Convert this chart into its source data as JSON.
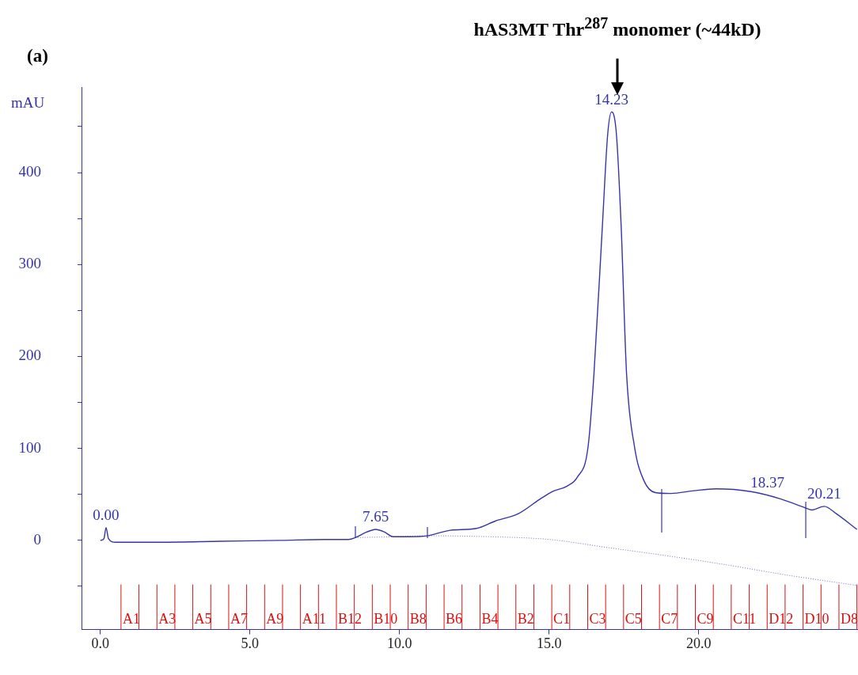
{
  "chart_data": {
    "type": "line",
    "title": "hAS3MT Thr$^{287}$ monomer (~44kD)",
    "ylabel": "mAU",
    "annotations": [
      "(a)",
      {
        "text": "0.00",
        "x": 0.19,
        "y": 14
      },
      {
        "text": "7.65",
        "x": 9.2,
        "y": 12
      },
      {
        "text": "14.23",
        "x": 17.09,
        "y": 466
      },
      {
        "text": "18.37",
        "x": 22.3,
        "y": 49
      },
      {
        "text": "20.21",
        "x": 24.2,
        "y": 37
      }
    ],
    "xlim": [
      -0.63,
      25.3
    ],
    "xticks": [
      {
        "value": 0,
        "label": "0.0"
      },
      {
        "value": 5,
        "label": "5.0"
      },
      {
        "value": 10,
        "label": "10.0"
      },
      {
        "value": 15,
        "label": "15.0"
      },
      {
        "value": 20,
        "label": "20.0"
      }
    ],
    "ylim": [
      -97,
      493
    ],
    "yticks": [
      {
        "value": -50,
        "label": null
      },
      0,
      {
        "value": 50,
        "label": null
      },
      100,
      {
        "value": 150,
        "label": null
      },
      200,
      {
        "value": 250,
        "label": null
      },
      300,
      {
        "value": 350,
        "label": null
      },
      400,
      {
        "value": 450,
        "label": null
      }
    ],
    "grid": false,
    "legend": false,
    "marker": "none",
    "series": [
      {
        "color": "#3535a8",
        "line_style": "solid",
        "x": [
          0,
          0.12,
          0.19,
          0.27,
          0.5,
          2,
          4,
          6,
          7.5,
          8.3,
          8.52,
          8.9,
          9.2,
          9.5,
          9.79,
          10.3,
          10.93,
          11.7,
          12.57,
          13.2,
          13.97,
          14.7,
          15.1,
          15.6,
          15.95,
          16.3,
          16.5,
          16.78,
          16.96,
          17.09,
          17.25,
          17.41,
          17.59,
          17.86,
          18.17,
          18.55,
          19.07,
          19.84,
          20.58,
          21.75,
          22.75,
          23.52,
          23.78,
          24.2,
          24.6,
          25.29
        ],
        "values": [
          0,
          2,
          14,
          2,
          -2,
          -2,
          -1,
          0,
          1,
          1,
          3,
          9,
          12,
          9,
          4,
          4,
          5,
          11,
          13,
          21,
          29,
          45,
          53,
          59,
          69,
          101,
          181,
          341,
          442,
          466,
          442,
          341,
          181,
          101,
          65,
          52,
          51,
          54,
          56,
          53,
          45,
          36,
          33,
          37,
          29,
          12
        ]
      },
      {
        "color": "#7070c8",
        "line_style": "dotted",
        "x": [
          8.52,
          9.79,
          10.93,
          13,
          15,
          17,
          19,
          21,
          23,
          25.3
        ],
        "values": [
          3,
          4,
          5,
          4,
          1,
          -8,
          -17,
          -27,
          -38,
          -49
        ]
      }
    ],
    "ref_lines": [
      {
        "axis": "x",
        "value": 0.69,
        "label": "A1",
        "color": "#e01010"
      },
      {
        "axis": "x",
        "value": 1.29,
        "label": null,
        "color": "#e01010"
      },
      {
        "axis": "x",
        "value": 1.89,
        "label": "A3",
        "color": "#e01010"
      },
      {
        "axis": "x",
        "value": 2.49,
        "label": null,
        "color": "#e01010"
      },
      {
        "axis": "x",
        "value": 3.09,
        "label": "A5",
        "color": "#e01010"
      },
      {
        "axis": "x",
        "value": 3.69,
        "label": null,
        "color": "#e01010"
      },
      {
        "axis": "x",
        "value": 4.29,
        "label": "A7",
        "color": "#e01010"
      },
      {
        "axis": "x",
        "value": 4.89,
        "label": null,
        "color": "#e01010"
      },
      {
        "axis": "x",
        "value": 5.49,
        "label": "A9",
        "color": "#e01010"
      },
      {
        "axis": "x",
        "value": 6.09,
        "label": null,
        "color": "#e01010"
      },
      {
        "axis": "x",
        "value": 6.69,
        "label": "A11",
        "color": "#e01010"
      },
      {
        "axis": "x",
        "value": 7.29,
        "label": null,
        "color": "#e01010"
      },
      {
        "axis": "x",
        "value": 7.89,
        "label": "B12",
        "color": "#e01010"
      },
      {
        "axis": "x",
        "value": 8.49,
        "label": null,
        "color": "#e01010"
      },
      {
        "axis": "x",
        "value": 9.09,
        "label": "B10",
        "color": "#e01010"
      },
      {
        "axis": "x",
        "value": 9.69,
        "label": null,
        "color": "#e01010"
      },
      {
        "axis": "x",
        "value": 10.29,
        "label": "B8",
        "color": "#e01010"
      },
      {
        "axis": "x",
        "value": 10.89,
        "label": null,
        "color": "#e01010"
      },
      {
        "axis": "x",
        "value": 11.49,
        "label": "B6",
        "color": "#e01010"
      },
      {
        "axis": "x",
        "value": 12.09,
        "label": null,
        "color": "#e01010"
      },
      {
        "axis": "x",
        "value": 12.69,
        "label": "B4",
        "color": "#e01010"
      },
      {
        "axis": "x",
        "value": 13.29,
        "label": null,
        "color": "#e01010"
      },
      {
        "axis": "x",
        "value": 13.89,
        "label": "B2",
        "color": "#e01010"
      },
      {
        "axis": "x",
        "value": 14.49,
        "label": null,
        "color": "#e01010"
      },
      {
        "axis": "x",
        "value": 15.09,
        "label": "C1",
        "color": "#e01010"
      },
      {
        "axis": "x",
        "value": 15.69,
        "label": null,
        "color": "#e01010"
      },
      {
        "axis": "x",
        "value": 16.29,
        "label": "C3",
        "color": "#e01010"
      },
      {
        "axis": "x",
        "value": 16.89,
        "label": null,
        "color": "#e01010"
      },
      {
        "axis": "x",
        "value": 17.49,
        "label": "C5",
        "color": "#e01010"
      },
      {
        "axis": "x",
        "value": 18.09,
        "label": null,
        "color": "#e01010"
      },
      {
        "axis": "x",
        "value": 18.69,
        "label": "C7",
        "color": "#e01010"
      },
      {
        "axis": "x",
        "value": 19.29,
        "label": null,
        "color": "#e01010"
      },
      {
        "axis": "x",
        "value": 19.89,
        "label": "C9",
        "color": "#e01010"
      },
      {
        "axis": "x",
        "value": 20.49,
        "label": null,
        "color": "#e01010"
      },
      {
        "axis": "x",
        "value": 21.09,
        "label": "C11",
        "color": "#e01010"
      },
      {
        "axis": "x",
        "value": 21.69,
        "label": null,
        "color": "#e01010"
      },
      {
        "axis": "x",
        "value": 22.29,
        "label": "D12",
        "color": "#e01010"
      },
      {
        "axis": "x",
        "value": 22.89,
        "label": null,
        "color": "#e01010"
      },
      {
        "axis": "x",
        "value": 23.49,
        "label": "D10",
        "color": "#e01010"
      },
      {
        "axis": "x",
        "value": 24.09,
        "label": null,
        "color": "#e01010"
      },
      {
        "axis": "x",
        "value": 24.69,
        "label": "D8",
        "color": "#e01010"
      },
      {
        "axis": "x",
        "value": 25.29,
        "label": null,
        "color": "#e01010"
      }
    ]
  }
}
